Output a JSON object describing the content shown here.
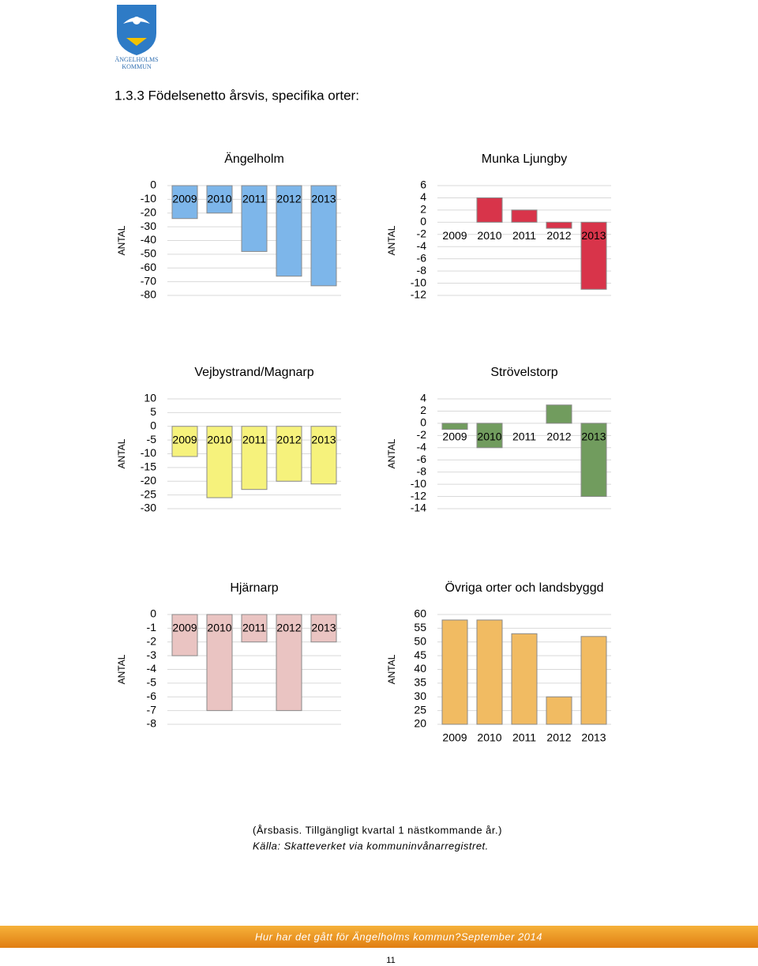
{
  "logo": [
    "ÄNGELHOLMS",
    "KOMMUN"
  ],
  "heading": "1.3.3 Födelsenetto årsvis, specifika orter:",
  "chart_data": [
    {
      "type": "bar",
      "title": "Ängelholm",
      "ylabel": "ANTAL",
      "categories": [
        "2009",
        "2010",
        "2011",
        "2012",
        "2013"
      ],
      "values": [
        -24,
        -20,
        -48,
        -66,
        -73
      ],
      "color": "#7db6ea",
      "ylim": [
        -80,
        0
      ],
      "yticks": [
        0,
        -10,
        -20,
        -30,
        -40,
        -50,
        -60,
        -70,
        -80
      ],
      "grid": true
    },
    {
      "type": "bar",
      "title": "Munka Ljungby",
      "ylabel": "ANTAL",
      "categories": [
        "2009",
        "2010",
        "2011",
        "2012",
        "2013"
      ],
      "values": [
        0,
        4,
        2,
        -1,
        -11
      ],
      "color": "#d8344a",
      "ylim": [
        -12,
        6
      ],
      "yticks": [
        6,
        4,
        2,
        0,
        -2,
        -4,
        -6,
        -8,
        -10,
        -12
      ],
      "grid": true
    },
    {
      "type": "bar",
      "title": "Vejbystrand/Magnarp",
      "ylabel": "ANTAL",
      "categories": [
        "2009",
        "2010",
        "2011",
        "2012",
        "2013"
      ],
      "values": [
        -11,
        -26,
        -23,
        -20,
        -21
      ],
      "color": "#f6f27c",
      "ylim": [
        -30,
        10
      ],
      "yticks": [
        10,
        5,
        0,
        -5,
        -10,
        -15,
        -20,
        -25,
        -30
      ],
      "grid": true
    },
    {
      "type": "bar",
      "title": "Strövelstorp",
      "ylabel": "ANTAL",
      "categories": [
        "2009",
        "2010",
        "2011",
        "2012",
        "2013"
      ],
      "values": [
        -1,
        -4,
        0,
        3,
        -12
      ],
      "color": "#719c5e",
      "ylim": [
        -14,
        4
      ],
      "yticks": [
        4,
        2,
        0,
        -2,
        -4,
        -6,
        -8,
        -10,
        -12,
        -14
      ],
      "grid": true
    },
    {
      "type": "bar",
      "title": "Hjärnarp",
      "ylabel": "ANTAL",
      "categories": [
        "2009",
        "2010",
        "2011",
        "2012",
        "2013"
      ],
      "values": [
        -3,
        -7,
        -2,
        -7,
        -2
      ],
      "color": "#eac4c2",
      "ylim": [
        -8,
        0
      ],
      "yticks": [
        0,
        -1,
        -2,
        -3,
        -4,
        -5,
        -6,
        -7,
        -8
      ],
      "grid": true
    },
    {
      "type": "bar",
      "title": "Övriga orter och landsbyggd",
      "ylabel": "ANTAL",
      "categories": [
        "2009",
        "2010",
        "2011",
        "2012",
        "2013"
      ],
      "values": [
        58,
        58,
        53,
        30,
        52
      ],
      "color": "#f1bb62",
      "ylim": [
        20,
        60
      ],
      "yticks": [
        60,
        55,
        50,
        45,
        40,
        35,
        30,
        25,
        20
      ],
      "grid": true
    }
  ],
  "notes": [
    "(Årsbasis. Tillgängligt kvartal 1 nästkommande år.)",
    "Källa: Skatteverket via kommuninvånarregistret."
  ],
  "footer": "Hur har det gått för Ängelholms kommun?September 2014",
  "page_number": "11"
}
